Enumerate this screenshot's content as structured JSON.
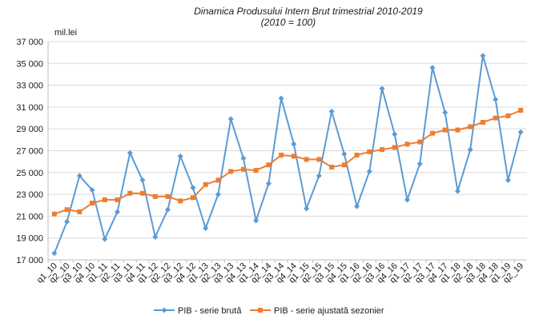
{
  "chart_data": {
    "type": "line",
    "title": "Dinamica Produsului Intern Brut trimestrial 2010-2019",
    "subtitle": "(2010 = 100)",
    "unit_label": "mil.lei",
    "xlabel": "",
    "ylabel": "",
    "ylim": [
      17000,
      37000
    ],
    "yticks": [
      17000,
      19000,
      21000,
      23000,
      25000,
      27000,
      29000,
      31000,
      33000,
      35000,
      37000
    ],
    "ytick_labels": [
      "17 000",
      "19 000",
      "21 000",
      "23 000",
      "25 000",
      "27 000",
      "29 000",
      "31 000",
      "33 000",
      "35 000",
      "37 000"
    ],
    "grid": true,
    "legend_position": "bottom",
    "categories": [
      "q1_10",
      "q2_10",
      "q3_10",
      "q4_10",
      "q1_11",
      "q2_11",
      "q3_11",
      "q4_11",
      "q1_12",
      "q2_12",
      "q3_12",
      "q4_12",
      "q1_13",
      "q2_13",
      "q3_13",
      "q4_13",
      "q1_14",
      "q2_14",
      "q3_14",
      "q4_14",
      "q1_15",
      "q2_15",
      "q3_15",
      "q4_15",
      "q1_16",
      "q2_16",
      "q3_16",
      "q4_16",
      "q1_17",
      "q2_17",
      "q3_17",
      "q4_17",
      "q1_18",
      "q2_18",
      "q3_18",
      "q4_18",
      "q1_19",
      "q2_19"
    ],
    "series": [
      {
        "name": "PIB - serie brută",
        "color": "#5b9bd5",
        "marker": "diamond",
        "values": [
          17600,
          20500,
          24700,
          23400,
          18900,
          21400,
          26800,
          24300,
          19100,
          21600,
          26500,
          23600,
          19900,
          23000,
          29900,
          26300,
          20600,
          24000,
          31800,
          27600,
          21700,
          24700,
          30600,
          26700,
          21900,
          25100,
          32700,
          28500,
          22500,
          25800,
          34600,
          30500,
          23300,
          27100,
          35700,
          31700,
          24300,
          28700
        ]
      },
      {
        "name": "PIB - serie ajustată sezonier",
        "color": "#ed7d31",
        "marker": "square",
        "values": [
          21200,
          21600,
          21400,
          22200,
          22500,
          22500,
          23100,
          23100,
          22800,
          22800,
          22400,
          22700,
          23900,
          24300,
          25100,
          25300,
          25200,
          25700,
          26600,
          26500,
          26200,
          26200,
          25500,
          25700,
          26600,
          26900,
          27100,
          27300,
          27600,
          27800,
          28600,
          28900,
          28900,
          29200,
          29600,
          30000,
          30200,
          30700
        ]
      }
    ]
  }
}
